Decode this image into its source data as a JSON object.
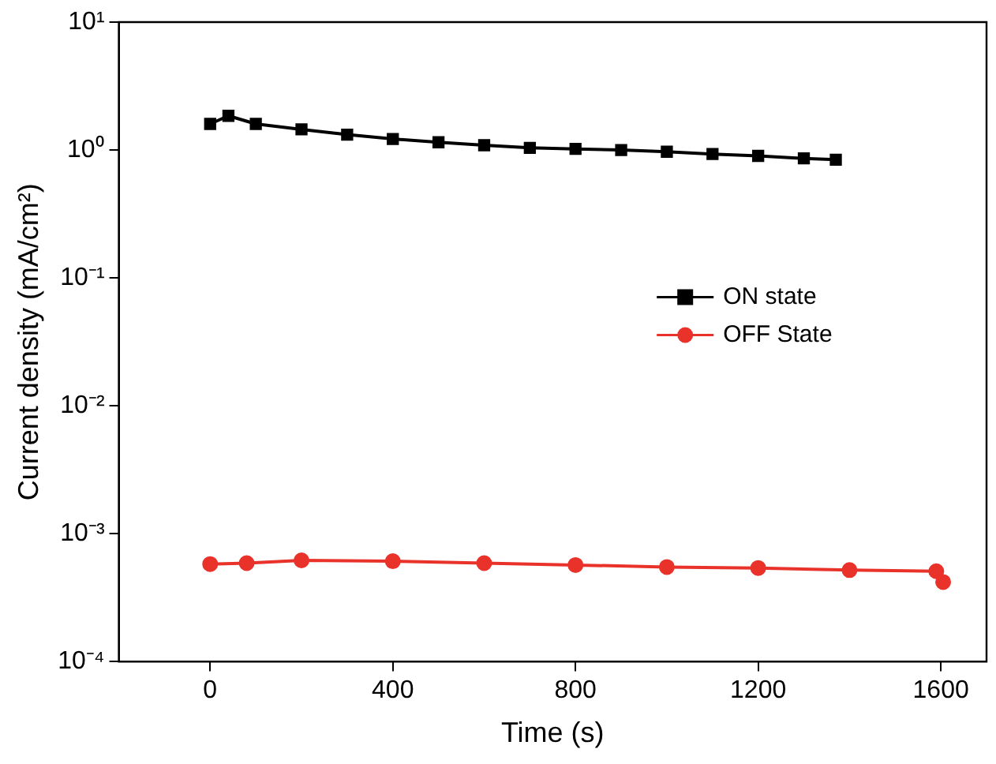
{
  "chart_data": {
    "type": "line",
    "xlabel": "Time (s)",
    "ylabel": "Current density (mA/cm²)",
    "log": "y",
    "xlim": [
      -200,
      1700
    ],
    "xticks": [
      0,
      400,
      800,
      1200,
      1600
    ],
    "ylim": [
      0.0001,
      10
    ],
    "yticks": [
      {
        "value": 0.0001,
        "label": "10⁻⁴"
      },
      {
        "value": 0.001,
        "label": "10⁻³"
      },
      {
        "value": 0.01,
        "label": "10⁻²"
      },
      {
        "value": 0.1,
        "label": "10⁻¹"
      },
      {
        "value": 1,
        "label": "10⁰"
      },
      {
        "value": 10,
        "label": "10¹"
      }
    ],
    "grid": false,
    "legend": "right",
    "series": [
      {
        "name": "ON state",
        "color": "#000000",
        "marker": "square",
        "x": [
          0,
          40,
          100,
          200,
          300,
          400,
          500,
          600,
          700,
          800,
          900,
          1000,
          1100,
          1200,
          1300,
          1370
        ],
        "values": [
          1.6,
          1.85,
          1.6,
          1.45,
          1.32,
          1.22,
          1.15,
          1.09,
          1.04,
          1.02,
          1.0,
          0.97,
          0.93,
          0.9,
          0.86,
          0.84
        ]
      },
      {
        "name": "OFF State",
        "color": "#e8322a",
        "marker": "circle",
        "x": [
          0,
          80,
          200,
          400,
          600,
          800,
          1000,
          1200,
          1400,
          1590,
          1605
        ],
        "values": [
          0.00058,
          0.00059,
          0.00062,
          0.00061,
          0.00059,
          0.00057,
          0.00055,
          0.00054,
          0.00052,
          0.00051,
          0.00042
        ]
      }
    ]
  }
}
